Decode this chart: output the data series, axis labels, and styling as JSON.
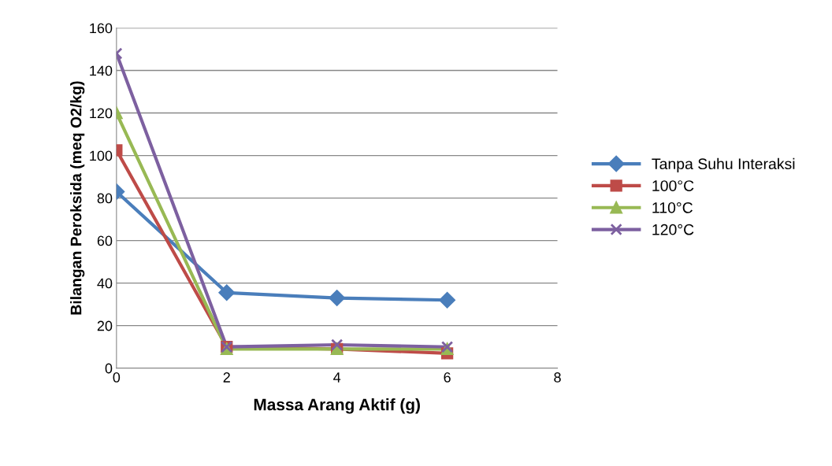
{
  "chart_data": {
    "type": "line",
    "xlabel": "Massa Arang Aktif (g)",
    "ylabel": "Bilangan Peroksida (meq O2/kg)",
    "x": [
      0,
      2,
      4,
      6
    ],
    "xlim": [
      0,
      8
    ],
    "xticks": [
      0,
      2,
      4,
      6,
      8
    ],
    "ylim": [
      0,
      160
    ],
    "yticks": [
      0,
      20,
      40,
      60,
      80,
      100,
      120,
      140,
      160
    ],
    "grid": "y",
    "legend": "right",
    "series": [
      {
        "name": "Tanpa Suhu Interaksi",
        "color": "#4a7ebb",
        "marker": "diamond",
        "values": [
          83,
          35.5,
          33,
          32
        ]
      },
      {
        "name": "100°C",
        "color": "#be4b48",
        "marker": "square",
        "values": [
          102.5,
          10,
          9,
          7
        ]
      },
      {
        "name": "110°C",
        "color": "#98b954",
        "marker": "triangle",
        "values": [
          120,
          9,
          9,
          9
        ]
      },
      {
        "name": "120°C",
        "color": "#7d60a0",
        "marker": "cross",
        "values": [
          148,
          10,
          11,
          10
        ]
      }
    ]
  }
}
